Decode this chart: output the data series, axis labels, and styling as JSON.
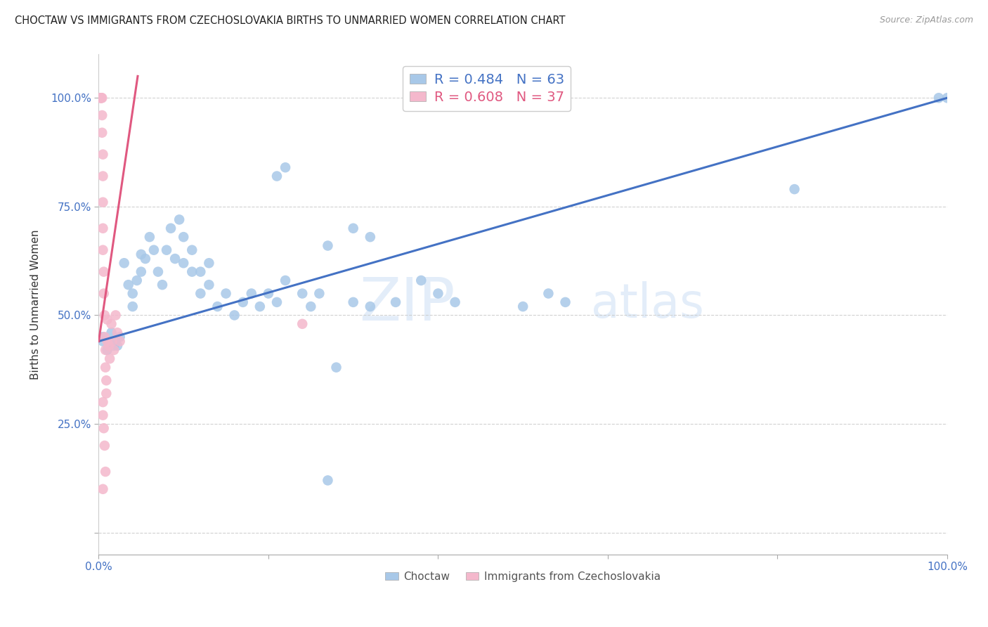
{
  "title": "CHOCTAW VS IMMIGRANTS FROM CZECHOSLOVAKIA BIRTHS TO UNMARRIED WOMEN CORRELATION CHART",
  "source": "Source: ZipAtlas.com",
  "ylabel": "Births to Unmarried Women",
  "xlim": [
    0.0,
    1.0
  ],
  "ylim": [
    -0.05,
    1.1
  ],
  "xticks": [
    0.0,
    0.2,
    0.4,
    0.6,
    0.8,
    1.0
  ],
  "yticks": [
    0.0,
    0.25,
    0.5,
    0.75,
    1.0
  ],
  "xticklabels": [
    "0.0%",
    "",
    "",
    "",
    "",
    "100.0%"
  ],
  "yticklabels": [
    "",
    "25.0%",
    "50.0%",
    "75.0%",
    "100.0%"
  ],
  "watermark": "ZIPatlas",
  "blue_color": "#a8c8e8",
  "pink_color": "#f4b8cc",
  "blue_line_color": "#4472c4",
  "pink_line_color": "#e05880",
  "legend_blue_label": "R = 0.484   N = 63",
  "legend_pink_label": "R = 0.608   N = 37",
  "legend_choctaw": "Choctaw",
  "legend_imm": "Immigrants from Czechoslovakia",
  "blue_R": 0.484,
  "blue_N": 63,
  "pink_R": 0.608,
  "pink_N": 37,
  "blue_line_x0": 0.0,
  "blue_line_y0": 0.44,
  "blue_line_x1": 1.0,
  "blue_line_y1": 1.0,
  "pink_line_x0": 0.0,
  "pink_line_y0": 0.44,
  "pink_line_x1": 0.046,
  "pink_line_y1": 1.05,
  "blue_x": [
    0.005,
    0.005,
    0.01,
    0.015,
    0.018,
    0.02,
    0.022,
    0.025,
    0.03,
    0.035,
    0.04,
    0.04,
    0.045,
    0.05,
    0.05,
    0.055,
    0.06,
    0.065,
    0.07,
    0.075,
    0.08,
    0.085,
    0.09,
    0.095,
    0.1,
    0.1,
    0.11,
    0.11,
    0.12,
    0.12,
    0.13,
    0.13,
    0.14,
    0.15,
    0.16,
    0.17,
    0.18,
    0.19,
    0.2,
    0.21,
    0.22,
    0.24,
    0.25,
    0.26,
    0.27,
    0.28,
    0.3,
    0.32,
    0.35,
    0.38,
    0.4,
    0.42,
    0.5,
    0.53,
    0.55,
    0.82,
    0.99,
    1.0,
    0.21,
    0.22,
    0.27,
    0.3,
    0.32
  ],
  "blue_y": [
    0.44,
    0.45,
    0.42,
    0.46,
    0.43,
    0.44,
    0.43,
    0.45,
    0.62,
    0.57,
    0.52,
    0.55,
    0.58,
    0.6,
    0.64,
    0.63,
    0.68,
    0.65,
    0.6,
    0.57,
    0.65,
    0.7,
    0.63,
    0.72,
    0.62,
    0.68,
    0.6,
    0.65,
    0.55,
    0.6,
    0.57,
    0.62,
    0.52,
    0.55,
    0.5,
    0.53,
    0.55,
    0.52,
    0.55,
    0.53,
    0.58,
    0.55,
    0.52,
    0.55,
    0.12,
    0.38,
    0.53,
    0.52,
    0.53,
    0.58,
    0.55,
    0.53,
    0.52,
    0.55,
    0.53,
    0.79,
    1.0,
    1.0,
    0.82,
    0.84,
    0.66,
    0.7,
    0.68
  ],
  "pink_x": [
    0.002,
    0.003,
    0.003,
    0.003,
    0.004,
    0.004,
    0.004,
    0.005,
    0.005,
    0.005,
    0.005,
    0.005,
    0.006,
    0.006,
    0.007,
    0.007,
    0.008,
    0.008,
    0.009,
    0.009,
    0.01,
    0.01,
    0.012,
    0.013,
    0.015,
    0.016,
    0.018,
    0.02,
    0.022,
    0.025,
    0.005,
    0.005,
    0.006,
    0.007,
    0.008,
    0.24,
    0.005
  ],
  "pink_y": [
    1.0,
    1.0,
    1.0,
    1.0,
    1.0,
    0.96,
    0.92,
    0.87,
    0.82,
    0.76,
    0.7,
    0.65,
    0.6,
    0.55,
    0.5,
    0.45,
    0.42,
    0.38,
    0.35,
    0.32,
    0.49,
    0.44,
    0.43,
    0.4,
    0.48,
    0.44,
    0.42,
    0.5,
    0.46,
    0.44,
    0.3,
    0.27,
    0.24,
    0.2,
    0.14,
    0.48,
    0.1
  ],
  "grid_color": "#cccccc",
  "tick_color": "#4472c4",
  "background_color": "#ffffff"
}
